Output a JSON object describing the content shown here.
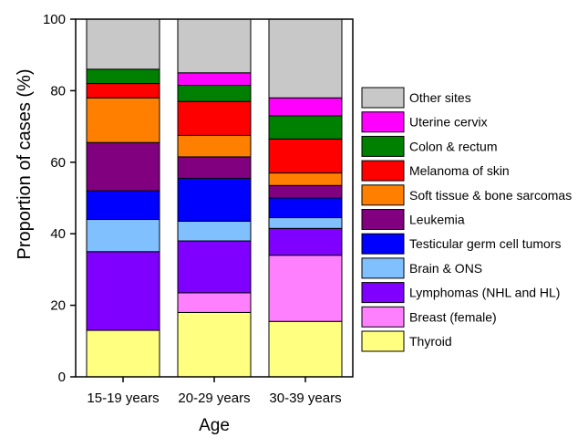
{
  "chart_data": {
    "type": "bar",
    "stacked": true,
    "categories": [
      "15-19 years",
      "20-29 years",
      "30-39 years"
    ],
    "xlabel": "Age",
    "ylabel": "Proportion of cases (%)",
    "ylim": [
      0,
      100
    ],
    "yticks": [
      0,
      20,
      40,
      60,
      80,
      100
    ],
    "grid": false,
    "legend_position": "right",
    "series": [
      {
        "name": "Thyroid",
        "color": "#ffff80",
        "values": [
          13,
          18,
          15.5
        ]
      },
      {
        "name": "Breast (female)",
        "color": "#ff80ff",
        "values": [
          0,
          5.5,
          18.5
        ]
      },
      {
        "name": "Lymphomas (NHL and HL)",
        "color": "#8000ff",
        "values": [
          22,
          14.5,
          7.5
        ]
      },
      {
        "name": "Brain & ONS",
        "color": "#80c0ff",
        "values": [
          9,
          5.5,
          3
        ]
      },
      {
        "name": "Testicular germ cell tumors",
        "color": "#0000ff",
        "values": [
          8,
          12,
          5.5
        ]
      },
      {
        "name": "Leukemia",
        "color": "#800080",
        "values": [
          13.5,
          6,
          3.5
        ]
      },
      {
        "name": "Soft tissue & bone sarcomas",
        "color": "#ff8000",
        "values": [
          12.5,
          6,
          3.5
        ]
      },
      {
        "name": "Melanoma of skin",
        "color": "#ff0000",
        "values": [
          4,
          9.5,
          9.5
        ]
      },
      {
        "name": "Colon & rectum",
        "color": "#008000",
        "values": [
          4,
          4.5,
          6.5
        ]
      },
      {
        "name": "Uterine cervix",
        "color": "#ff00ff",
        "values": [
          0,
          3.5,
          5
        ]
      },
      {
        "name": "Other sites",
        "color": "#c8c8c8",
        "values": [
          14,
          15,
          22
        ]
      }
    ]
  }
}
